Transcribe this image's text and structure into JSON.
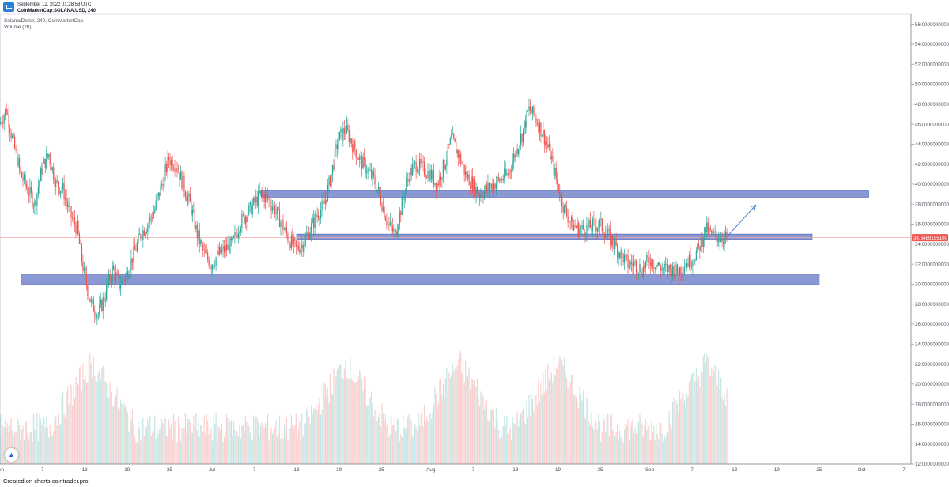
{
  "header": {
    "date_line": "September 12, 2022 01:28:58 UTC",
    "symbol_line": "CoinMarketCap:SOLANA.USD, 240"
  },
  "legend": {
    "title": "Solana/Dollar, 240, CoinMarketCap",
    "volume": "Volume (20)"
  },
  "footer": {
    "text": "Created on charts.cointrader.pro"
  },
  "icons": {
    "logo": "chart-logo-icon",
    "badge": "tradingview-badge-icon",
    "arrow": "projection-arrow-icon"
  },
  "colors": {
    "up": "#26a69a",
    "down": "#ef5350",
    "zone": "#7e8fd0",
    "zone_border": "#4e63b8",
    "price_label_bg": "#f0544f",
    "price_line": "#f7a7a5",
    "arrow": "#4a78c9"
  },
  "chart_data": {
    "type": "candlestick",
    "title": "Solana/Dollar, 240, CoinMarketCap",
    "x_tick_labels": [
      "Jun",
      "7",
      "13",
      "19",
      "25",
      "Jul",
      "7",
      "13",
      "19",
      "25",
      "Aug",
      "7",
      "13",
      "19",
      "25",
      "Sep",
      "7",
      "13",
      "19",
      "25",
      "Oct",
      "7"
    ],
    "x_start": "2022-06-01",
    "x_end": "2022-10-08",
    "y_tick_labels": [
      "12.0000000000",
      "14.0000000000",
      "16.0000000000",
      "18.0000000000",
      "20.0000000000",
      "22.0000000000",
      "24.0000000000",
      "26.0000000000",
      "28.0000000000",
      "30.0000000000",
      "32.0000000000",
      "34.0000000000",
      "36.0000000000",
      "38.0000000000",
      "40.0000000000",
      "42.0000000000",
      "44.0000000000",
      "46.0000000000",
      "48.0000000000",
      "50.0000000000",
      "52.0000000000",
      "54.0000000000",
      "56.0000000000"
    ],
    "ylim": [
      12,
      57
    ],
    "last_price_label": "34.6489155100",
    "last_price": 34.65,
    "price_path": [
      [
        "2022-06-01",
        46
      ],
      [
        "2022-06-02",
        47.5
      ],
      [
        "2022-06-03",
        44
      ],
      [
        "2022-06-04",
        41
      ],
      [
        "2022-06-05",
        39.5
      ],
      [
        "2022-06-06",
        38
      ],
      [
        "2022-06-07",
        41.5
      ],
      [
        "2022-06-08",
        43
      ],
      [
        "2022-06-09",
        40
      ],
      [
        "2022-06-10",
        39.5
      ],
      [
        "2022-06-11",
        37
      ],
      [
        "2022-06-12",
        35.5
      ],
      [
        "2022-06-13",
        31
      ],
      [
        "2022-06-14",
        28
      ],
      [
        "2022-06-15",
        27
      ],
      [
        "2022-06-16",
        29
      ],
      [
        "2022-06-17",
        31.5
      ],
      [
        "2022-06-18",
        30
      ],
      [
        "2022-06-19",
        31
      ],
      [
        "2022-06-20",
        33
      ],
      [
        "2022-06-21",
        35
      ],
      [
        "2022-06-22",
        36
      ],
      [
        "2022-06-23",
        37.5
      ],
      [
        "2022-06-24",
        40
      ],
      [
        "2022-06-25",
        42.5
      ],
      [
        "2022-06-26",
        42
      ],
      [
        "2022-06-27",
        40
      ],
      [
        "2022-06-28",
        38
      ],
      [
        "2022-06-29",
        35
      ],
      [
        "2022-06-30",
        33
      ],
      [
        "2022-07-01",
        32
      ],
      [
        "2022-07-02",
        33
      ],
      [
        "2022-07-03",
        33.5
      ],
      [
        "2022-07-04",
        34
      ],
      [
        "2022-07-05",
        36
      ],
      [
        "2022-07-06",
        37
      ],
      [
        "2022-07-07",
        38
      ],
      [
        "2022-07-08",
        39
      ],
      [
        "2022-07-09",
        38.5
      ],
      [
        "2022-07-10",
        37.5
      ],
      [
        "2022-07-11",
        36
      ],
      [
        "2022-07-12",
        34.5
      ],
      [
        "2022-07-13",
        33.5
      ],
      [
        "2022-07-14",
        34
      ],
      [
        "2022-07-15",
        35.5
      ],
      [
        "2022-07-16",
        37
      ],
      [
        "2022-07-17",
        38
      ],
      [
        "2022-07-18",
        41
      ],
      [
        "2022-07-19",
        44.5
      ],
      [
        "2022-07-20",
        45.5
      ],
      [
        "2022-07-21",
        44
      ],
      [
        "2022-07-22",
        42.5
      ],
      [
        "2022-07-23",
        41.5
      ],
      [
        "2022-07-24",
        40.5
      ],
      [
        "2022-07-25",
        38.5
      ],
      [
        "2022-07-26",
        36
      ],
      [
        "2022-07-27",
        35
      ],
      [
        "2022-07-28",
        38
      ],
      [
        "2022-07-29",
        41
      ],
      [
        "2022-07-30",
        42
      ],
      [
        "2022-07-31",
        41.5
      ],
      [
        "2022-08-01",
        41
      ],
      [
        "2022-08-02",
        40
      ],
      [
        "2022-08-03",
        42
      ],
      [
        "2022-08-04",
        44.5
      ],
      [
        "2022-08-05",
        43
      ],
      [
        "2022-08-06",
        41
      ],
      [
        "2022-08-07",
        40
      ],
      [
        "2022-08-08",
        39
      ],
      [
        "2022-08-09",
        39.5
      ],
      [
        "2022-08-10",
        40
      ],
      [
        "2022-08-11",
        40.5
      ],
      [
        "2022-08-12",
        41
      ],
      [
        "2022-08-13",
        43
      ],
      [
        "2022-08-14",
        45
      ],
      [
        "2022-08-15",
        47.5
      ],
      [
        "2022-08-16",
        46.5
      ],
      [
        "2022-08-17",
        45
      ],
      [
        "2022-08-18",
        43
      ],
      [
        "2022-08-19",
        40
      ],
      [
        "2022-08-20",
        37.5
      ],
      [
        "2022-08-21",
        36
      ],
      [
        "2022-08-22",
        35.5
      ],
      [
        "2022-08-23",
        35.5
      ],
      [
        "2022-08-24",
        35.8
      ],
      [
        "2022-08-25",
        36
      ],
      [
        "2022-08-26",
        35
      ],
      [
        "2022-08-27",
        34
      ],
      [
        "2022-08-28",
        33
      ],
      [
        "2022-08-29",
        32
      ],
      [
        "2022-08-30",
        32
      ],
      [
        "2022-08-31",
        31.5
      ],
      [
        "2022-09-01",
        32.5
      ],
      [
        "2022-09-02",
        32
      ],
      [
        "2022-09-03",
        31.5
      ],
      [
        "2022-09-04",
        31.5
      ],
      [
        "2022-09-05",
        31.2
      ],
      [
        "2022-09-06",
        32
      ],
      [
        "2022-09-07",
        32.5
      ],
      [
        "2022-09-08",
        33.5
      ],
      [
        "2022-09-09",
        35.5
      ],
      [
        "2022-09-10",
        34.8
      ],
      [
        "2022-09-11",
        34.7
      ],
      [
        "2022-09-12",
        34.65
      ]
    ],
    "zones": [
      {
        "from": "2022-07-08",
        "to": "2022-10-02",
        "low": 38.7,
        "high": 39.4
      },
      {
        "from": "2022-07-13",
        "to": "2022-09-24",
        "low": 34.5,
        "high": 35.0
      },
      {
        "from": "2022-06-04",
        "to": "2022-09-25",
        "low": 29.95,
        "high": 31.0
      }
    ],
    "projection_arrow": {
      "from": [
        "2022-09-12",
        34.8
      ],
      "to": [
        "2022-09-16",
        37.9
      ]
    },
    "volume_series": {
      "name": "Volume (20)",
      "peak_dates": [
        "2022-06-14",
        "2022-07-20",
        "2022-08-05",
        "2022-08-19",
        "2022-09-09"
      ]
    }
  }
}
